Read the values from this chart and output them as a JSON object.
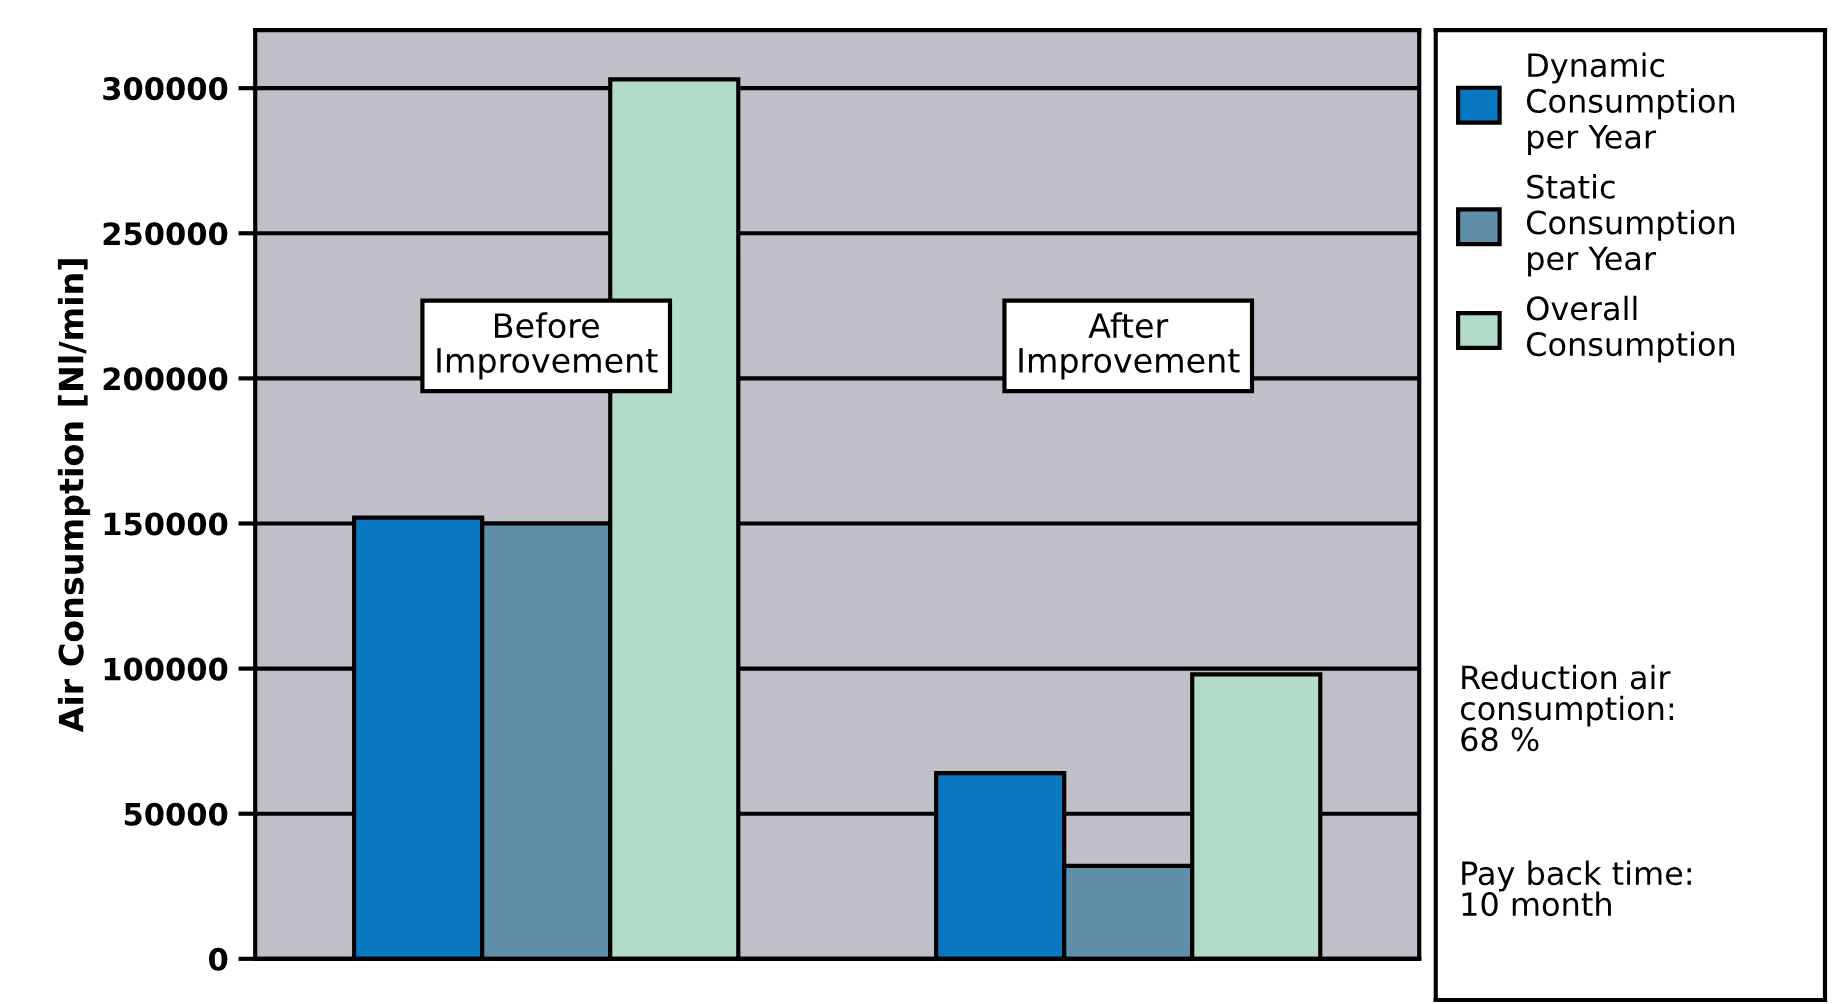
{
  "chart_data": {
    "type": "bar",
    "ylabel": "Air Consumption [Nl/min]",
    "categories": [
      "Before\nImprovement",
      "After\nImprovement"
    ],
    "series": [
      {
        "name": "Dynamic\nConsumption\nper Year",
        "color": "#0a78c0",
        "values": [
          152000,
          64000
        ]
      },
      {
        "name": "Static\nConsumption\nper Year",
        "color": "#5f8fa8",
        "values": [
          150000,
          32000
        ]
      },
      {
        "name": "Overall\nConsumption",
        "color": "#b3dcc8",
        "values": [
          303000,
          98000
        ]
      }
    ],
    "ylim": [
      0,
      320000
    ],
    "yticks": [
      0,
      50000,
      100000,
      150000,
      200000,
      250000,
      300000
    ],
    "grid": "y",
    "legend": "right",
    "tick_labels": "y",
    "annotations": [
      "Reduction air\nconsumption:\n68 %",
      "Pay back time:\n10 month"
    ]
  }
}
